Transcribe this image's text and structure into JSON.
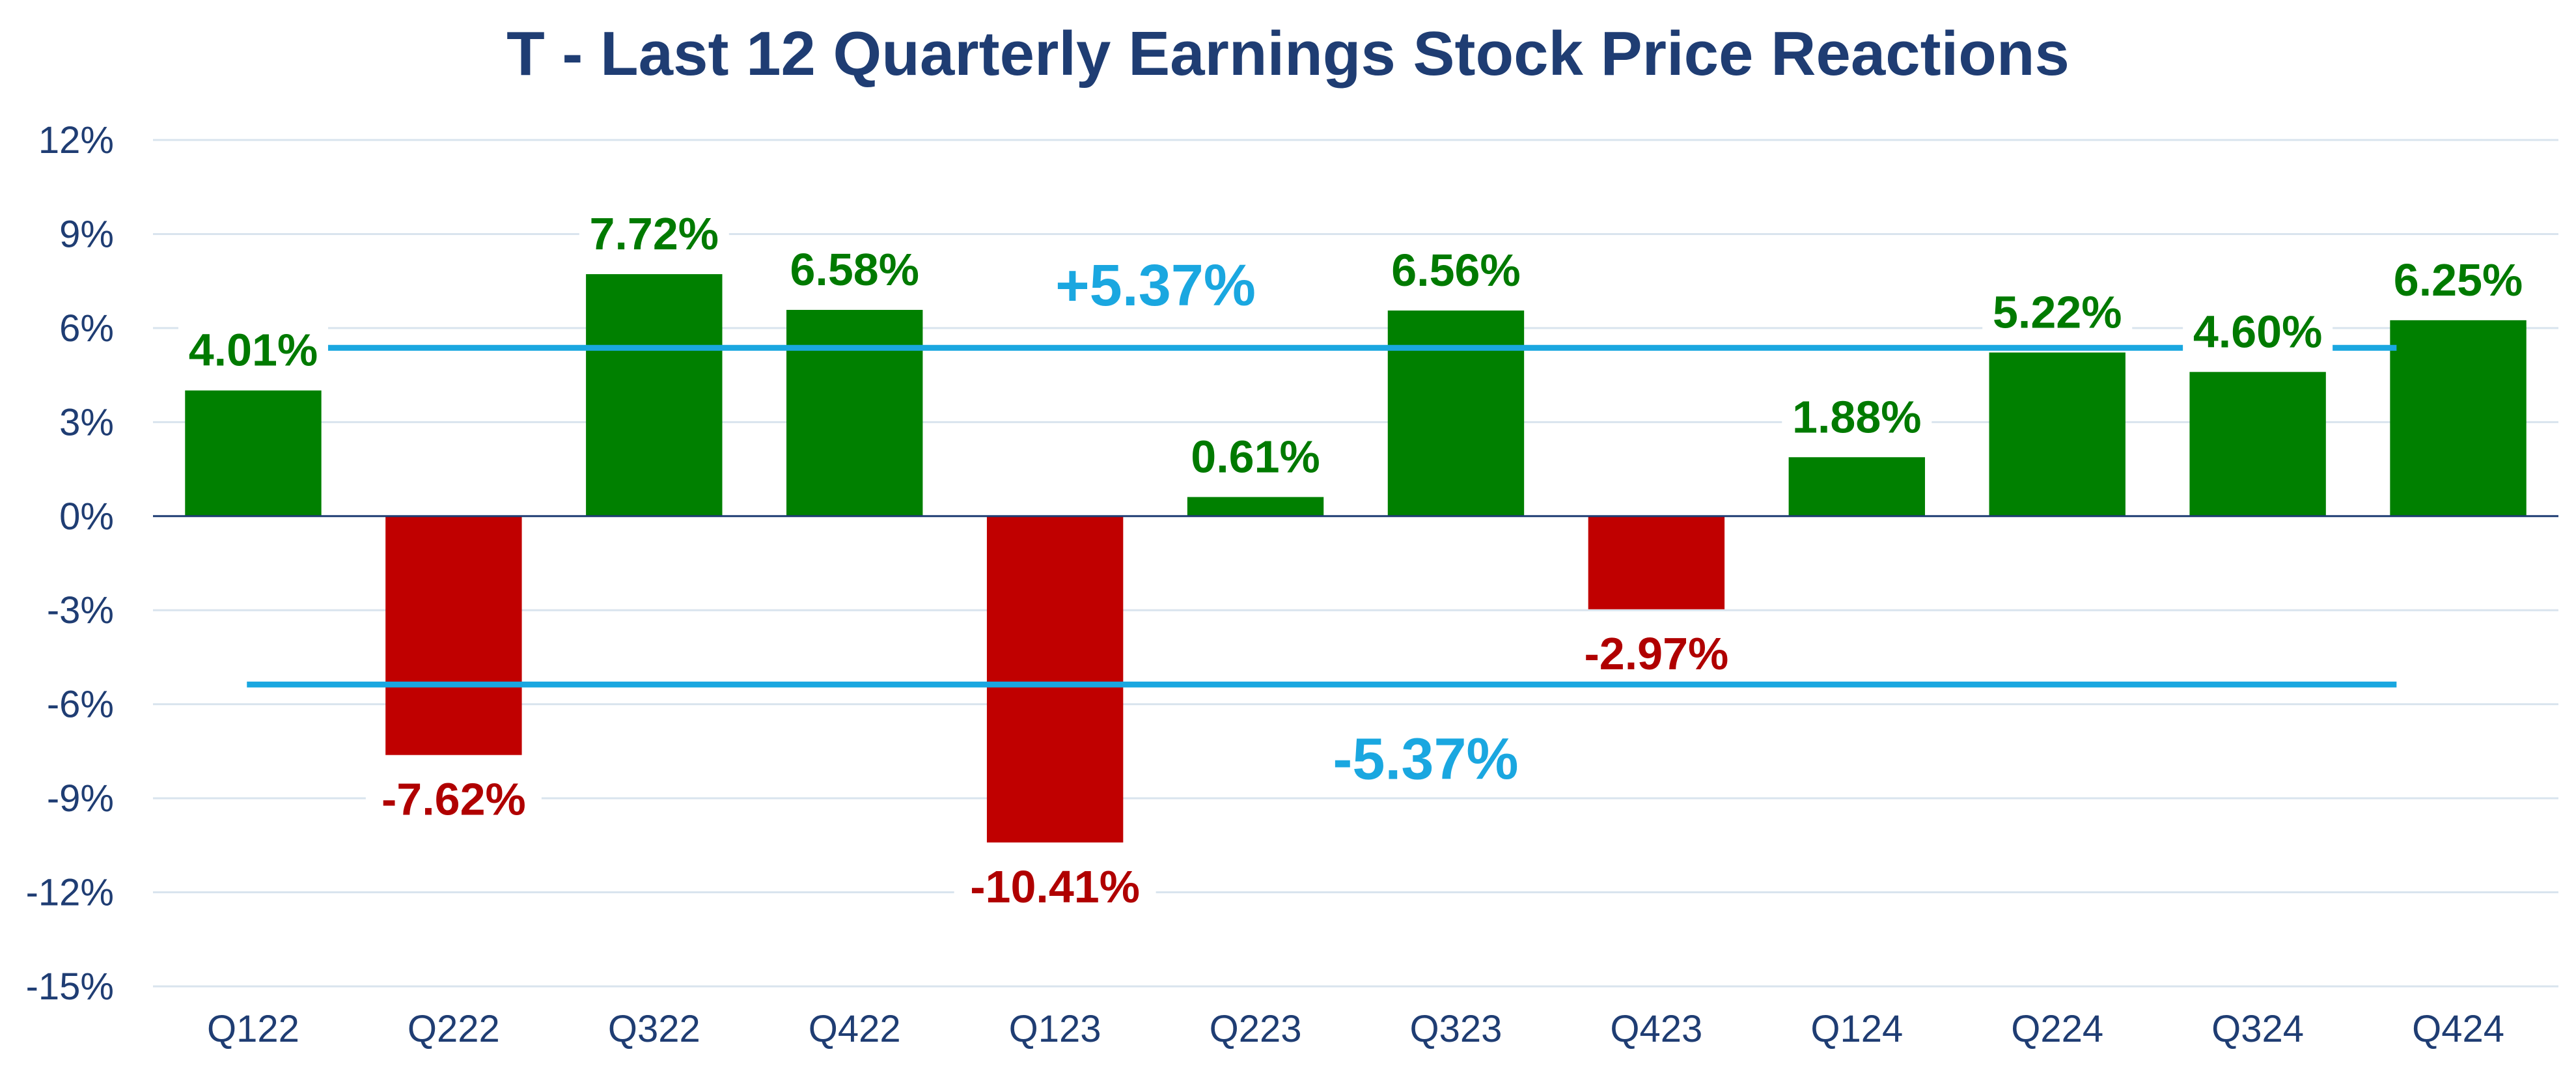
{
  "chart_data": {
    "type": "bar",
    "title": "T - Last 12 Quarterly Earnings Stock Price Reactions",
    "categories": [
      "Q122",
      "Q222",
      "Q322",
      "Q422",
      "Q123",
      "Q223",
      "Q323",
      "Q423",
      "Q124",
      "Q224",
      "Q324",
      "Q424"
    ],
    "values": [
      4.01,
      -7.62,
      7.72,
      6.58,
      -10.41,
      0.61,
      6.56,
      -2.97,
      1.88,
      5.22,
      4.6,
      6.25
    ],
    "data_labels": [
      "4.01%",
      "-7.62%",
      "7.72%",
      "6.58%",
      "-10.41%",
      "0.61%",
      "6.56%",
      "-2.97%",
      "1.88%",
      "5.22%",
      "4.60%",
      "6.25%"
    ],
    "ylim": [
      -15,
      12
    ],
    "y_ticks": [
      12,
      9,
      6,
      3,
      0,
      -3,
      -6,
      -9,
      -12,
      -15
    ],
    "y_tick_labels": [
      "12%",
      "9%",
      "6%",
      "3%",
      "0%",
      "-3%",
      "-6%",
      "-9%",
      "-12%",
      "-15%"
    ],
    "grid": true,
    "reference_lines": [
      {
        "value": 5.37,
        "label": "+5.37%"
      },
      {
        "value": -5.37,
        "label": "-5.37%"
      }
    ],
    "colors": {
      "positive": "#008000",
      "negative": "#C00000",
      "positive_label": "#007A00",
      "negative_label": "#B00000",
      "reference": "#1AA7E0",
      "title": "#1F3D73",
      "axis_text": "#1F3D73",
      "grid": "#D9E4EE"
    }
  }
}
